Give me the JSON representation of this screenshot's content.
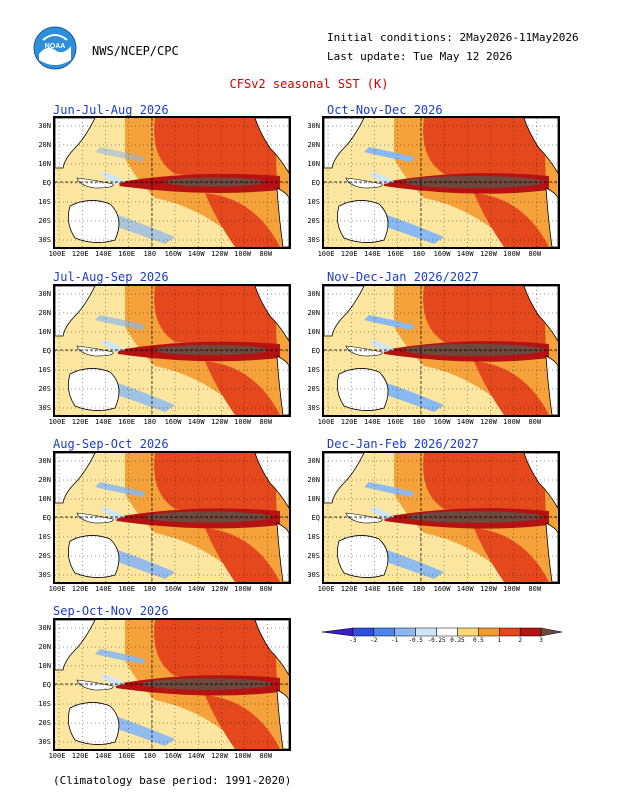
{
  "header": {
    "org": "NWS/NCEP/CPC",
    "initial_conditions": "Initial conditions: 2May2026-11May2026",
    "last_update": "Last update: Tue May 12 2026",
    "title": "CFSv2 seasonal SST (K)",
    "logo_text": "NOAA"
  },
  "panels": [
    {
      "title": "Jun-Jul-Aug 2026",
      "strength": 0.55
    },
    {
      "title": "Oct-Nov-Dec 2026",
      "strength": 1.0
    },
    {
      "title": "Jul-Aug-Sep 2026",
      "strength": 0.7
    },
    {
      "title": "Nov-Dec-Jan 2026/2027",
      "strength": 1.0
    },
    {
      "title": "Aug-Sep-Oct 2026",
      "strength": 0.85
    },
    {
      "title": "Dec-Jan-Feb 2026/2027",
      "strength": 0.95
    },
    {
      "title": "Sep-Oct-Nov 2026",
      "strength": 0.9
    }
  ],
  "lat_labels": [
    "30N",
    "20N",
    "10N",
    "EQ",
    "10S",
    "20S",
    "30S"
  ],
  "lon_labels": [
    "100E",
    "120E",
    "140E",
    "160E",
    "180",
    "160W",
    "140W",
    "120W",
    "100W",
    "80W"
  ],
  "colorbar": {
    "labels": [
      "-3",
      "-2",
      "-1",
      "-0.5",
      "-0.25",
      "0.25",
      "0.5",
      "1",
      "2",
      "3"
    ],
    "colors": [
      "#3a1ec8",
      "#2f4fe0",
      "#4f84ea",
      "#8ab8f0",
      "#cfe6f8",
      "#ffffff",
      "#fbd779",
      "#f49a2c",
      "#e6461a",
      "#b51212",
      "#6e4a3e"
    ]
  },
  "footer": "(Climatology base period: 1991-2020)"
}
